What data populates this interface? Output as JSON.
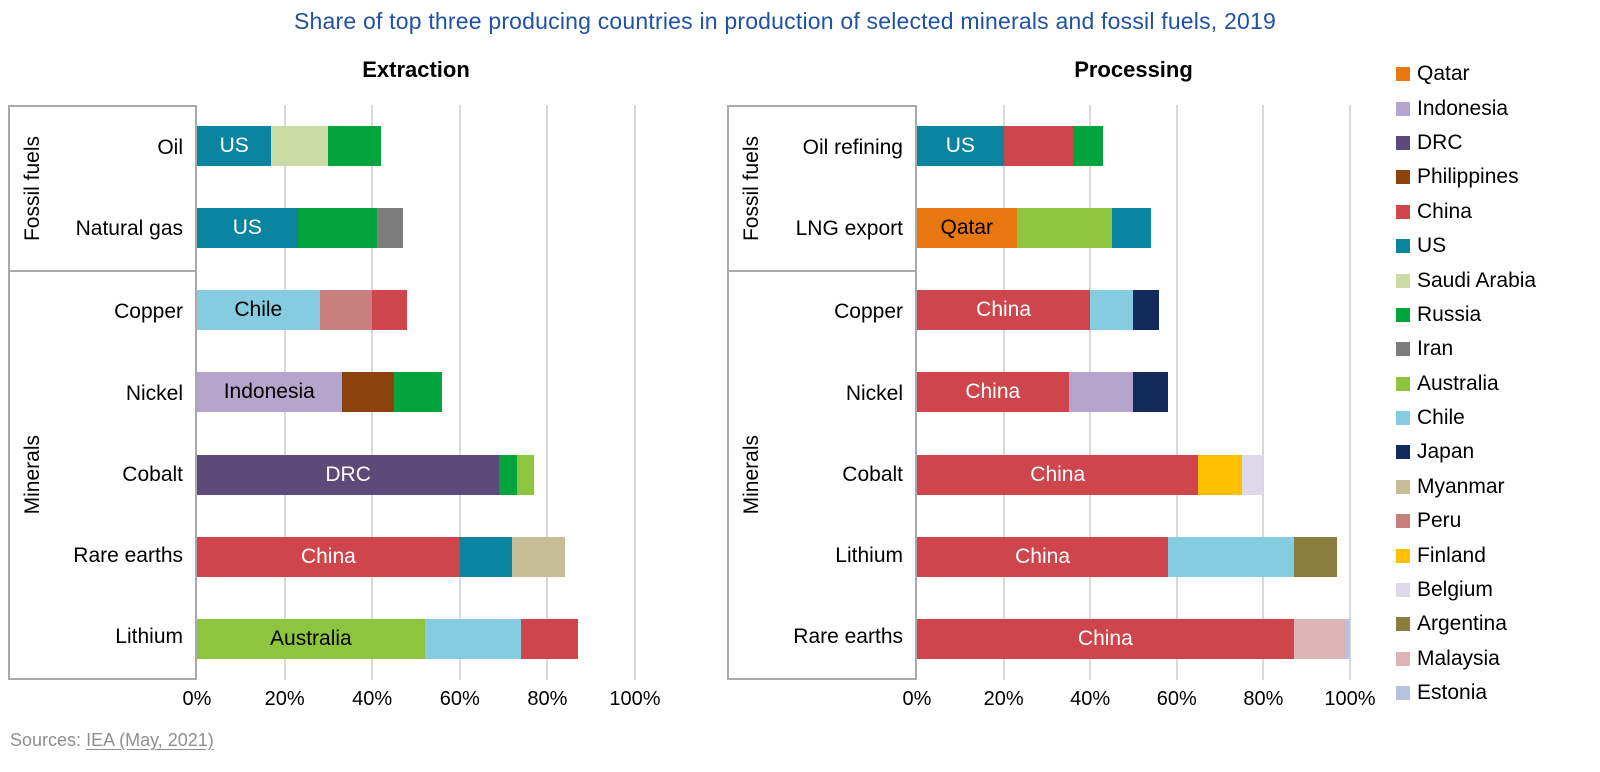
{
  "page": {
    "title": "Share of top three producing countries in production of selected minerals and fossil fuels, 2019",
    "title_color": "#1F52A5",
    "source": {
      "prefix": "Sources:",
      "link_text": "IEA (May, 2021)"
    }
  },
  "colors": {
    "Qatar": "#E8770F",
    "Indonesia": "#B3A5CC",
    "DRC": "#5C4A78",
    "Philippines": "#8E420C",
    "China": "#CE454B",
    "US": "#0B84A0",
    "Saudi Arabia": "#C9DAA2",
    "Russia": "#03A33E",
    "Iran": "#7C7C7C",
    "Australia": "#8DC63E",
    "Chile": "#85CCE0",
    "Japan": "#122B5C",
    "Myanmar": "#C6BD96",
    "Peru": "#C8807F",
    "Finland": "#FFC004",
    "Belgium": "#DED9E8",
    "Argentina": "#8A7D3E",
    "Malaysia": "#DBB5B5",
    "Estonia": "#B7C3DD"
  },
  "legend": [
    "Qatar",
    "Indonesia",
    "DRC",
    "Philippines",
    "China",
    "US",
    "Saudi Arabia",
    "Russia",
    "Iran",
    "Australia",
    "Chile",
    "Japan",
    "Myanmar",
    "Peru",
    "Finland",
    "Belgium",
    "Argentina",
    "Malaysia",
    "Estonia"
  ],
  "axis": {
    "ticks": [
      0,
      20,
      40,
      60,
      80,
      100
    ],
    "tick_labels": [
      "0%",
      "20%",
      "40%",
      "60%",
      "80%",
      "100%"
    ],
    "max": 100
  },
  "chart_data": [
    {
      "type": "bar",
      "orientation": "horizontal",
      "stacked": true,
      "title": "Extraction",
      "unit": "%",
      "xlim": [
        0,
        100
      ],
      "grid": true,
      "groups": [
        {
          "label": "Fossil fuels",
          "rows": [
            {
              "category": "Oil",
              "bar_label": "US",
              "bar_label_color": "#FFFFFF",
              "segments": [
                {
                  "country": "US",
                  "value": 17
                },
                {
                  "country": "Saudi Arabia",
                  "value": 13
                },
                {
                  "country": "Russia",
                  "value": 12
                }
              ]
            },
            {
              "category": "Natural gas",
              "bar_label": "US",
              "bar_label_color": "#FFFFFF",
              "segments": [
                {
                  "country": "US",
                  "value": 23
                },
                {
                  "country": "Russia",
                  "value": 18
                },
                {
                  "country": "Iran",
                  "value": 6
                }
              ]
            }
          ]
        },
        {
          "label": "Minerals",
          "rows": [
            {
              "category": "Copper",
              "bar_label": "Chile",
              "bar_label_color": "#000000",
              "segments": [
                {
                  "country": "Chile",
                  "value": 28
                },
                {
                  "country": "Peru",
                  "value": 12
                },
                {
                  "country": "China",
                  "value": 8
                }
              ]
            },
            {
              "category": "Nickel",
              "bar_label": "Indonesia",
              "bar_label_color": "#000000",
              "segments": [
                {
                  "country": "Indonesia",
                  "value": 33
                },
                {
                  "country": "Philippines",
                  "value": 12
                },
                {
                  "country": "Russia",
                  "value": 11
                }
              ]
            },
            {
              "category": "Cobalt",
              "bar_label": "DRC",
              "bar_label_color": "#FFFFFF",
              "segments": [
                {
                  "country": "DRC",
                  "value": 69
                },
                {
                  "country": "Russia",
                  "value": 4
                },
                {
                  "country": "Australia",
                  "value": 4
                }
              ]
            },
            {
              "category": "Rare earths",
              "bar_label": "China",
              "bar_label_color": "#FFFFFF",
              "segments": [
                {
                  "country": "China",
                  "value": 60
                },
                {
                  "country": "US",
                  "value": 12
                },
                {
                  "country": "Myanmar",
                  "value": 12
                }
              ]
            },
            {
              "category": "Lithium",
              "bar_label": "Australia",
              "bar_label_color": "#000000",
              "segments": [
                {
                  "country": "Australia",
                  "value": 52
                },
                {
                  "country": "Chile",
                  "value": 22
                },
                {
                  "country": "China",
                  "value": 13
                }
              ]
            }
          ]
        }
      ]
    },
    {
      "type": "bar",
      "orientation": "horizontal",
      "stacked": true,
      "title": "Processing",
      "unit": "%",
      "xlim": [
        0,
        100
      ],
      "grid": true,
      "groups": [
        {
          "label": "Fossil fuels",
          "rows": [
            {
              "category": "Oil refining",
              "bar_label": "US",
              "bar_label_color": "#FFFFFF",
              "segments": [
                {
                  "country": "US",
                  "value": 20
                },
                {
                  "country": "China",
                  "value": 16
                },
                {
                  "country": "Russia",
                  "value": 7
                }
              ]
            },
            {
              "category": "LNG export",
              "bar_label": "Qatar",
              "bar_label_color": "#000000",
              "segments": [
                {
                  "country": "Qatar",
                  "value": 23
                },
                {
                  "country": "Australia",
                  "value": 22
                },
                {
                  "country": "US",
                  "value": 9
                }
              ]
            }
          ]
        },
        {
          "label": "Minerals",
          "rows": [
            {
              "category": "Copper",
              "bar_label": "China",
              "bar_label_color": "#FFFFFF",
              "segments": [
                {
                  "country": "China",
                  "value": 40
                },
                {
                  "country": "Chile",
                  "value": 10
                },
                {
                  "country": "Japan",
                  "value": 6
                }
              ]
            },
            {
              "category": "Nickel",
              "bar_label": "China",
              "bar_label_color": "#FFFFFF",
              "segments": [
                {
                  "country": "China",
                  "value": 35
                },
                {
                  "country": "Indonesia",
                  "value": 15
                },
                {
                  "country": "Japan",
                  "value": 8
                }
              ]
            },
            {
              "category": "Cobalt",
              "bar_label": "China",
              "bar_label_color": "#FFFFFF",
              "segments": [
                {
                  "country": "China",
                  "value": 65
                },
                {
                  "country": "Finland",
                  "value": 10
                },
                {
                  "country": "Belgium",
                  "value": 5
                }
              ]
            },
            {
              "category": "Lithium",
              "bar_label": "China",
              "bar_label_color": "#FFFFFF",
              "segments": [
                {
                  "country": "China",
                  "value": 58
                },
                {
                  "country": "Chile",
                  "value": 29
                },
                {
                  "country": "Argentina",
                  "value": 10
                }
              ]
            },
            {
              "category": "Rare earths",
              "bar_label": "China",
              "bar_label_color": "#FFFFFF",
              "segments": [
                {
                  "country": "China",
                  "value": 87
                },
                {
                  "country": "Malaysia",
                  "value": 12
                },
                {
                  "country": "Estonia",
                  "value": 1
                }
              ]
            }
          ]
        }
      ]
    }
  ]
}
